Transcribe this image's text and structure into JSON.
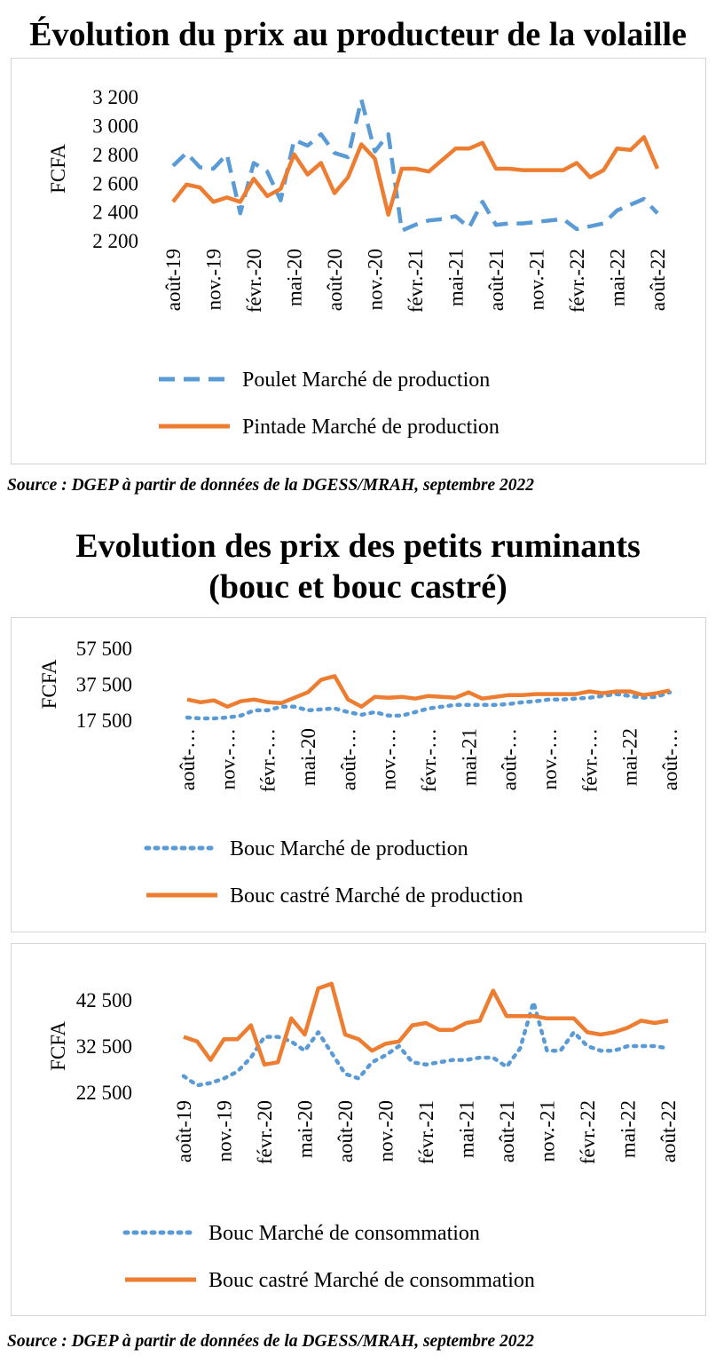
{
  "titles": {
    "poultry": "Évolution du prix au producteur de la volaille",
    "ruminants": "Evolution des prix des petits ruminants (bouc et bouc castré)"
  },
  "sources": {
    "poultry": "Source : DGEP à partir de données de la DGESS/MRAH, septembre 2022",
    "ruminants": "Source : DGEP à partir de données de la DGESS/MRAH, septembre 2022"
  },
  "colors": {
    "blue": "#5b9bd5",
    "orange": "#ed7d31",
    "border": "#d4d4d4"
  },
  "chart_data": [
    {
      "type": "line",
      "ylabel": "FCFA",
      "ylim": [
        2200,
        3200
      ],
      "yticks": [
        2200,
        2400,
        2600,
        2800,
        3000,
        3200
      ],
      "ytick_labels": [
        "2 200",
        "2 400",
        "2 600",
        "2 800",
        "3 000",
        "3 200"
      ],
      "x": [
        "août-19",
        "sept.-19",
        "oct.-19",
        "nov.-19",
        "déc.-19",
        "janv.-20",
        "févr.-20",
        "mars-20",
        "avr.-20",
        "mai-20",
        "juin-20",
        "juil.-20",
        "août-20",
        "sept.-20",
        "oct.-20",
        "nov.-20",
        "déc.-20",
        "janv.-21",
        "févr.-21",
        "mars-21",
        "avr.-21",
        "mai-21",
        "juin-21",
        "juil.-21",
        "août-21",
        "sept.-21",
        "oct.-21",
        "nov.-21",
        "déc.-21",
        "janv.-22",
        "févr.-22",
        "mars-22",
        "avr.-22",
        "mai-22",
        "juin-22",
        "juil.-22",
        "août-22"
      ],
      "tick_labels": [
        "août-19",
        "nov.-19",
        "févr.-20",
        "mai-20",
        "août-20",
        "nov.-20",
        "févr.-21",
        "mai-21",
        "août-21",
        "nov.-21",
        "févr.-22",
        "mai-22",
        "août-22"
      ],
      "legend_position": "bottom",
      "series": [
        {
          "name": "Poulet Marché de production",
          "style": "dashed",
          "color": "#5b9bd5",
          "values": [
            2720,
            2810,
            2710,
            2700,
            2800,
            2390,
            2740,
            2680,
            2480,
            2900,
            2860,
            2940,
            2810,
            2780,
            3180,
            2820,
            2940,
            2270,
            2310,
            2340,
            2350,
            2370,
            2290,
            2470,
            2310,
            2320,
            2320,
            2330,
            2340,
            2350,
            2280,
            2300,
            2320,
            2410,
            2450,
            2490,
            2390
          ]
        },
        {
          "name": "Pintade Marché de production",
          "style": "solid",
          "color": "#ed7d31",
          "values": [
            2470,
            2590,
            2570,
            2470,
            2500,
            2470,
            2630,
            2510,
            2560,
            2800,
            2660,
            2740,
            2530,
            2640,
            2870,
            2770,
            2380,
            2700,
            2700,
            2680,
            2760,
            2840,
            2840,
            2880,
            2700,
            2700,
            2690,
            2690,
            2690,
            2690,
            2740,
            2640,
            2690,
            2840,
            2830,
            2920,
            2700
          ]
        }
      ]
    },
    {
      "type": "line",
      "ylabel": "FCFA",
      "ylim": [
        17500,
        57500
      ],
      "yticks": [
        17500,
        37500,
        57500
      ],
      "ytick_labels": [
        "17 500",
        "37 500",
        "57 500"
      ],
      "x": [
        "août-19",
        "sept.-19",
        "oct.-19",
        "nov.-19",
        "déc.-19",
        "janv.-20",
        "févr.-20",
        "mars-20",
        "avr.-20",
        "mai-20",
        "juin-20",
        "juil.-20",
        "août-20",
        "sept.-20",
        "oct.-20",
        "nov.-20",
        "déc.-20",
        "janv.-21",
        "févr.-21",
        "mars-21",
        "avr.-21",
        "mai-21",
        "juin-21",
        "juil.-21",
        "août-21",
        "sept.-21",
        "oct.-21",
        "nov.-21",
        "déc.-21",
        "janv.-22",
        "févr.-22",
        "mars-22",
        "avr.-22",
        "mai-22",
        "juin-22",
        "juil.-22",
        "août-22"
      ],
      "tick_labels": [
        "août-…",
        "nov.-…",
        "févr.-…",
        "mai-20",
        "août-…",
        "nov.-…",
        "févr.-…",
        "mai-21",
        "août-…",
        "nov.-…",
        "févr.-…",
        "mai-22",
        "août-…"
      ],
      "legend_position": "bottom",
      "series": [
        {
          "name": "Bouc Marché de production",
          "style": "dotted",
          "color": "#5b9bd5",
          "values": [
            19000,
            18500,
            18500,
            19000,
            20000,
            23000,
            23000,
            25000,
            25000,
            23000,
            23500,
            24000,
            22000,
            20500,
            22000,
            20000,
            20000,
            22000,
            24000,
            25000,
            26000,
            26000,
            26000,
            26000,
            26500,
            27500,
            28000,
            29000,
            29000,
            29500,
            30000,
            31000,
            32000,
            31000,
            30000,
            30500,
            33000
          ]
        },
        {
          "name": "Bouc castré Marché de production",
          "style": "solid",
          "color": "#ed7d31",
          "values": [
            29000,
            27500,
            28500,
            25000,
            28000,
            29000,
            27500,
            27000,
            30000,
            33000,
            40000,
            42000,
            29000,
            25000,
            30500,
            30000,
            30500,
            29500,
            31000,
            30500,
            30000,
            33000,
            29500,
            30500,
            31500,
            31500,
            32000,
            32000,
            32000,
            32000,
            33500,
            32500,
            33500,
            33500,
            31500,
            32500,
            34000
          ]
        }
      ]
    },
    {
      "type": "line",
      "ylabel": "FCFA",
      "ylim": [
        22500,
        42500
      ],
      "yticks": [
        22500,
        32500,
        42500
      ],
      "ytick_labels": [
        "22 500",
        "32 500",
        "42 500"
      ],
      "x": [
        "août-19",
        "sept.-19",
        "oct.-19",
        "nov.-19",
        "déc.-19",
        "janv.-20",
        "févr.-20",
        "mars-20",
        "avr.-20",
        "mai-20",
        "juin-20",
        "juil.-20",
        "août-20",
        "sept.-20",
        "oct.-20",
        "nov.-20",
        "déc.-20",
        "janv.-21",
        "févr.-21",
        "mars-21",
        "avr.-21",
        "mai-21",
        "juin-21",
        "juil.-21",
        "août-21",
        "sept.-21",
        "oct.-21",
        "nov.-21",
        "déc.-21",
        "janv.-22",
        "févr.-22",
        "mars-22",
        "avr.-22",
        "mai-22",
        "juin-22",
        "juil.-22",
        "août-22"
      ],
      "tick_labels": [
        "août-19",
        "nov.-19",
        "févr.-20",
        "mai-20",
        "août-20",
        "nov.-20",
        "févr.-21",
        "mai-21",
        "août-21",
        "nov.-21",
        "févr.-22",
        "mai-22",
        "août-22"
      ],
      "legend_position": "bottom",
      "series": [
        {
          "name": "Bouc Marché de consommation",
          "style": "dotted",
          "color": "#5b9bd5",
          "values": [
            26000,
            24000,
            24500,
            25500,
            27000,
            30000,
            34500,
            34500,
            33500,
            31500,
            35500,
            31000,
            26500,
            25500,
            29000,
            30500,
            32500,
            29000,
            28500,
            29000,
            29500,
            29500,
            30000,
            30000,
            28000,
            32000,
            42000,
            31500,
            31500,
            35500,
            32500,
            31500,
            31500,
            32500,
            32500,
            32500,
            32000
          ]
        },
        {
          "name": "Bouc castré Marché de consommation",
          "style": "solid",
          "color": "#ed7d31",
          "values": [
            34500,
            33500,
            29500,
            34000,
            34000,
            37000,
            28500,
            29000,
            38500,
            35000,
            45000,
            46000,
            35000,
            34000,
            31500,
            33000,
            33500,
            37000,
            37500,
            36000,
            36000,
            37500,
            38000,
            44500,
            39000,
            39000,
            39000,
            38500,
            38500,
            38500,
            35500,
            35000,
            35500,
            36500,
            38000,
            37500,
            38000
          ]
        }
      ]
    }
  ]
}
